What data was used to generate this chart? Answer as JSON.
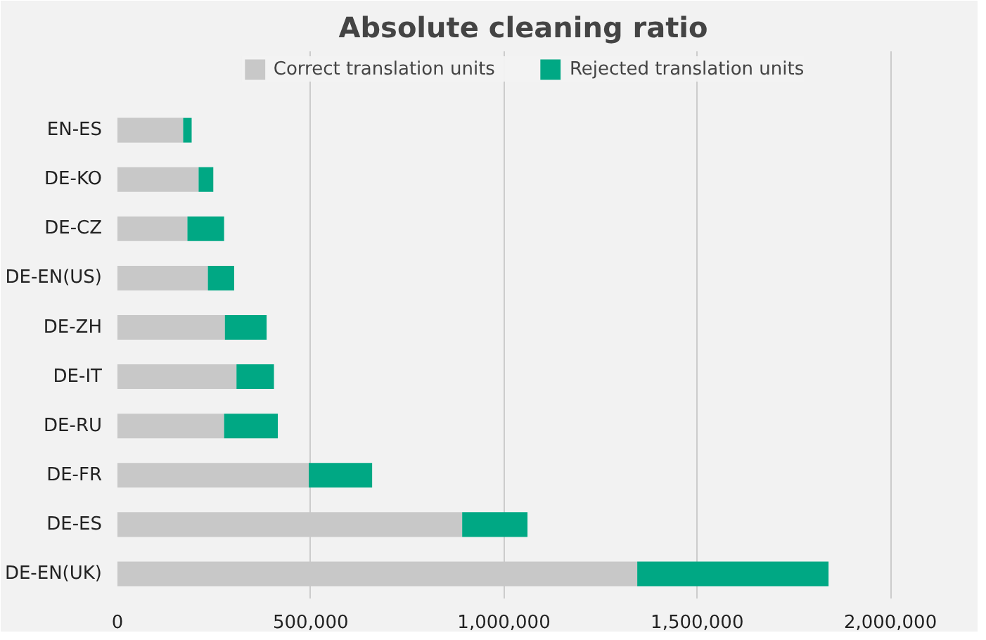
{
  "chart_data": {
    "type": "bar",
    "orientation": "horizontal",
    "stacked": true,
    "title": "Absolute cleaning ratio",
    "categories": [
      "EN-ES",
      "DE-KO",
      "DE-CZ",
      "DE-EN(US)",
      "DE-ZH",
      "DE-IT",
      "DE-RU",
      "DE-FR",
      "DE-ES",
      "DE-EN(UK)"
    ],
    "series": [
      {
        "name": "Correct translation units",
        "color": "#c8c8c8",
        "values": [
          170000,
          210000,
          181000,
          234000,
          278000,
          308000,
          276000,
          495000,
          892000,
          1345000
        ]
      },
      {
        "name": "Rejected translation units",
        "color": "#00a884",
        "values": [
          22000,
          38000,
          95000,
          68000,
          108000,
          97000,
          139000,
          164000,
          169000,
          495000
        ]
      }
    ],
    "xlim": [
      0,
      2100000
    ],
    "xticks": [
      0,
      {
        "value": 500000,
        "label": "500,000"
      },
      {
        "value": 1000000,
        "label": "1,000,000"
      },
      {
        "value": 1500000,
        "label": "1,500,000"
      },
      {
        "value": 2000000,
        "label": "2,000,000"
      }
    ],
    "grid": "x",
    "legend": "top"
  }
}
